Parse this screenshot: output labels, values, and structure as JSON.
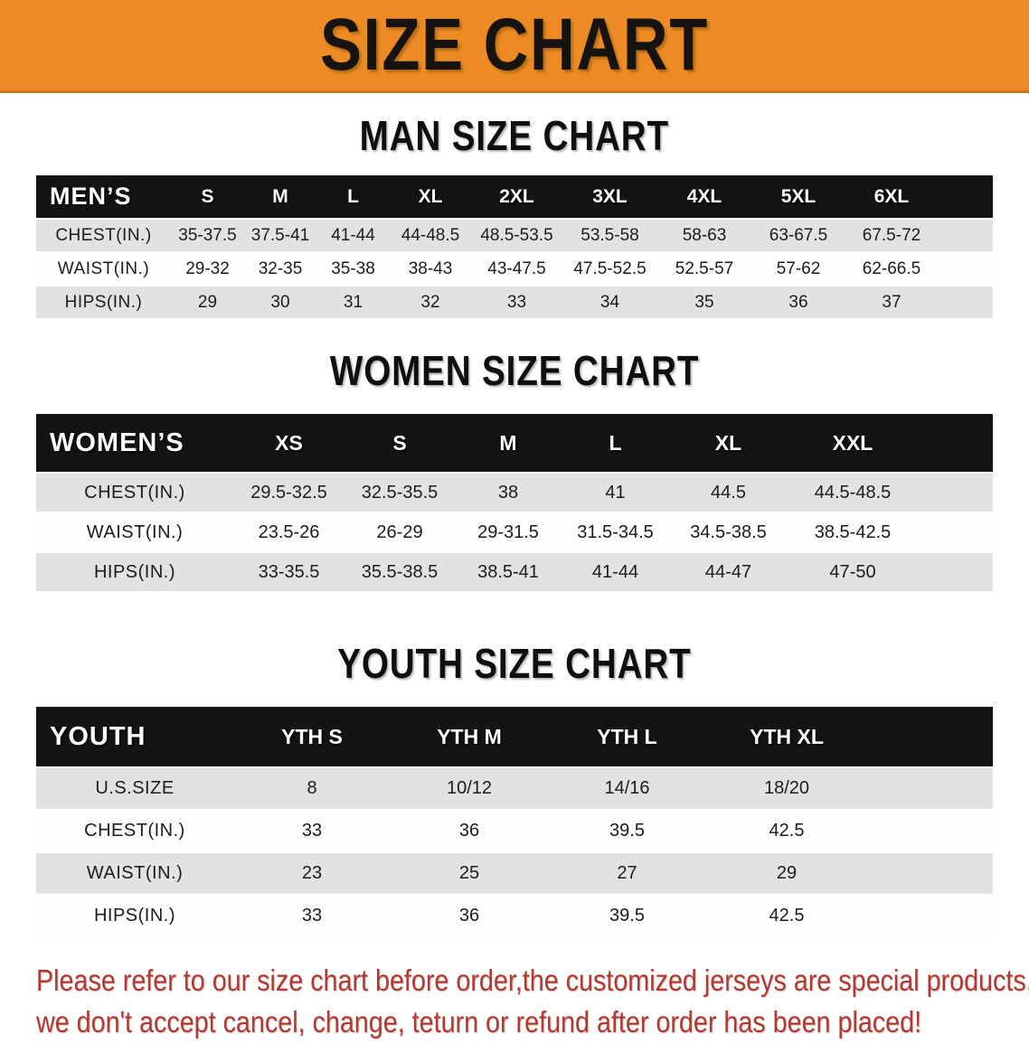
{
  "banner": {
    "title": "SIZE CHART",
    "bg_color": "#EC8B23",
    "edge_color": "#C9731B"
  },
  "men": {
    "heading": "MAN SIZE CHART",
    "header": [
      "MEN’S",
      "S",
      "M",
      "L",
      "XL",
      "2XL",
      "3XL",
      "4XL",
      "5XL",
      "6XL"
    ],
    "rows": [
      [
        "CHEST(IN.)",
        "35-37.5",
        "37.5-41",
        "41-44",
        "44-48.5",
        "48.5-53.5",
        "53.5-58",
        "58-63",
        "63-67.5",
        "67.5-72"
      ],
      [
        "WAIST(IN.)",
        "29-32",
        "32-35",
        "35-38",
        "38-43",
        "43-47.5",
        "47.5-52.5",
        "52.5-57",
        "57-62",
        "62-66.5"
      ],
      [
        "HIPS(IN.)",
        "29",
        "30",
        "31",
        "32",
        "33",
        "34",
        "35",
        "36",
        "37"
      ]
    ]
  },
  "women": {
    "heading": "WOMEN SIZE CHART",
    "header": [
      "WOMEN’S",
      "XS",
      "S",
      "M",
      "L",
      "XL",
      "XXL"
    ],
    "rows": [
      [
        "CHEST(IN.)",
        "29.5-32.5",
        "32.5-35.5",
        "38",
        "41",
        "44.5",
        "44.5-48.5"
      ],
      [
        "WAIST(IN.)",
        "23.5-26",
        "26-29",
        "29-31.5",
        "31.5-34.5",
        "34.5-38.5",
        "38.5-42.5"
      ],
      [
        "HIPS(IN.)",
        "33-35.5",
        "35.5-38.5",
        "38.5-41",
        "41-44",
        "44-47",
        "47-50"
      ]
    ]
  },
  "youth": {
    "heading": "YOUTH SIZE CHART",
    "header": [
      "YOUTH",
      "YTH S",
      "YTH M",
      "YTH L",
      "YTH XL"
    ],
    "rows": [
      [
        "U.S.SIZE",
        "8",
        "10/12",
        "14/16",
        "18/20"
      ],
      [
        "CHEST(IN.)",
        "33",
        "36",
        "39.5",
        "42.5"
      ],
      [
        "WAIST(IN.)",
        "23",
        "25",
        "27",
        "29"
      ],
      [
        "HIPS(IN.)",
        "33",
        "36",
        "39.5",
        "42.5"
      ]
    ]
  },
  "disclaimer": {
    "color": "#B03A31",
    "lines": [
      "Please refer to our size chart before order,the customized jerseys are special products,",
      "we don't accept cancel, change, teturn or refund after order has been placed!"
    ]
  }
}
